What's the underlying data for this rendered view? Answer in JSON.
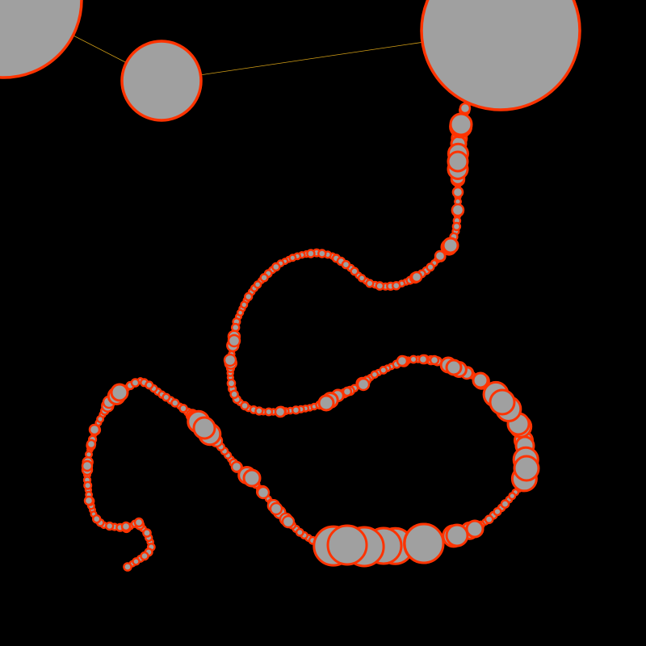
{
  "colors": {
    "background": "#000000",
    "node_fill": "#a0a0a0",
    "node_stroke": "#ff3300",
    "link_line": "#d4a017"
  },
  "scene": {
    "type": "bead-chain",
    "large_node_count": 3,
    "chain_node_count": 180
  }
}
